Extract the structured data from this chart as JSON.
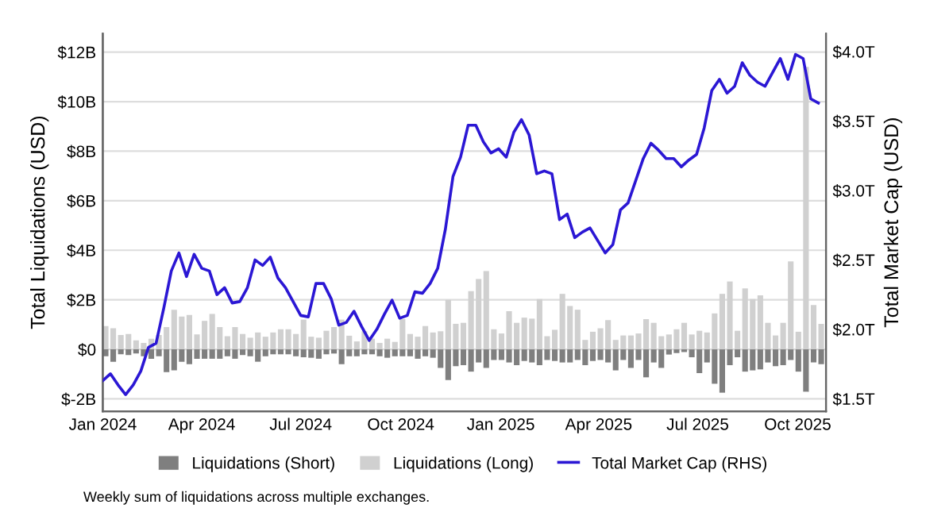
{
  "chart_data": {
    "type": "bar",
    "stacked": true,
    "ylabel": "Total Liquidations (USD)",
    "y2label": "Total Market Cap (USD)",
    "annotations": [
      "Weekly sum of liquidations across multiple exchanges."
    ],
    "x": [
      "2024-01-01",
      "2024-01-08",
      "2024-01-15",
      "2024-01-22",
      "2024-01-29",
      "2024-02-05",
      "2024-02-12",
      "2024-02-19",
      "2024-02-26",
      "2024-03-04",
      "2024-03-11",
      "2024-03-18",
      "2024-03-25",
      "2024-04-01",
      "2024-04-08",
      "2024-04-15",
      "2024-04-22",
      "2024-04-29",
      "2024-05-06",
      "2024-05-13",
      "2024-05-20",
      "2024-05-27",
      "2024-06-03",
      "2024-06-10",
      "2024-06-17",
      "2024-06-24",
      "2024-07-01",
      "2024-07-08",
      "2024-07-15",
      "2024-07-22",
      "2024-07-29",
      "2024-08-05",
      "2024-08-12",
      "2024-08-19",
      "2024-08-26",
      "2024-09-02",
      "2024-09-09",
      "2024-09-16",
      "2024-09-23",
      "2024-09-30",
      "2024-10-07",
      "2024-10-14",
      "2024-10-21",
      "2024-10-28",
      "2024-11-04",
      "2024-11-11",
      "2024-11-18",
      "2024-11-25",
      "2024-12-02",
      "2024-12-09",
      "2024-12-16",
      "2024-12-23",
      "2024-12-30",
      "2025-01-06",
      "2025-01-13",
      "2025-01-20",
      "2025-01-27",
      "2025-02-03",
      "2025-02-10",
      "2025-02-17",
      "2025-02-24",
      "2025-03-03",
      "2025-03-10",
      "2025-03-17",
      "2025-03-24",
      "2025-03-31",
      "2025-04-07",
      "2025-04-14",
      "2025-04-21",
      "2025-04-28",
      "2025-05-05",
      "2025-05-12",
      "2025-05-19",
      "2025-05-26",
      "2025-06-02",
      "2025-06-09",
      "2025-06-16",
      "2025-06-23",
      "2025-06-30",
      "2025-07-07",
      "2025-07-14",
      "2025-07-21",
      "2025-07-28",
      "2025-08-04",
      "2025-08-11",
      "2025-08-18",
      "2025-08-25",
      "2025-09-01",
      "2025-09-08",
      "2025-09-15",
      "2025-09-22",
      "2025-09-29",
      "2025-10-06",
      "2025-10-13",
      "2025-10-20"
    ],
    "series": [
      {
        "name": "Liquidations (Short)",
        "color": "#7f7f7f",
        "values": [
          -0.28,
          -0.5,
          -0.2,
          -0.23,
          -0.17,
          -0.28,
          -0.38,
          -0.28,
          -0.92,
          -0.85,
          -0.5,
          -0.6,
          -0.38,
          -0.38,
          -0.38,
          -0.38,
          -0.28,
          -0.38,
          -0.23,
          -0.28,
          -0.5,
          -0.28,
          -0.2,
          -0.2,
          -0.2,
          -0.28,
          -0.32,
          -0.34,
          -0.38,
          -0.2,
          -0.17,
          -0.6,
          -0.28,
          -0.28,
          -0.2,
          -0.2,
          -0.28,
          -0.34,
          -0.28,
          -0.28,
          -0.28,
          -0.38,
          -0.28,
          -0.34,
          -0.75,
          -1.24,
          -0.68,
          -0.64,
          -0.9,
          -0.53,
          -0.75,
          -0.43,
          -0.43,
          -0.53,
          -0.64,
          -0.47,
          -0.53,
          -0.64,
          -0.43,
          -0.47,
          -0.53,
          -0.53,
          -0.43,
          -0.64,
          -0.47,
          -0.43,
          -0.53,
          -0.85,
          -0.43,
          -0.75,
          -0.43,
          -1.13,
          -0.53,
          -0.75,
          -0.21,
          -0.15,
          -0.11,
          -0.32,
          -0.96,
          -0.53,
          -1.39,
          -1.75,
          -0.64,
          -0.32,
          -0.9,
          -0.85,
          -0.81,
          -0.53,
          -0.68,
          -0.64,
          -0.43,
          -0.9,
          -1.71,
          -0.53,
          -0.6
        ]
      },
      {
        "name": "Liquidations (Long)",
        "color": "#d0d0d0",
        "values": [
          0.94,
          0.85,
          0.58,
          0.62,
          0.36,
          0.26,
          0.43,
          0.58,
          0.9,
          1.6,
          1.32,
          1.39,
          0.6,
          1.15,
          1.43,
          0.9,
          0.53,
          0.9,
          0.62,
          0.47,
          0.68,
          0.51,
          0.68,
          0.81,
          0.81,
          0.62,
          1.2,
          0.51,
          0.47,
          0.75,
          0.9,
          1.2,
          0.55,
          0.32,
          0.73,
          0.43,
          0.26,
          0.43,
          0.3,
          1.22,
          0.62,
          0.51,
          0.94,
          0.68,
          0.73,
          2.0,
          1.03,
          1.07,
          2.35,
          2.84,
          3.16,
          0.81,
          0.64,
          1.54,
          1.07,
          1.28,
          1.24,
          2.03,
          0.53,
          0.79,
          2.24,
          1.75,
          1.6,
          0.38,
          0.71,
          0.85,
          1.18,
          0.38,
          0.56,
          0.56,
          0.64,
          1.22,
          1.07,
          0.53,
          0.6,
          0.81,
          1.07,
          0.6,
          0.75,
          0.68,
          1.45,
          2.24,
          2.74,
          0.75,
          2.46,
          2.03,
          2.18,
          1.07,
          0.56,
          1.07,
          3.55,
          0.71,
          11.4,
          1.79,
          1.03
        ]
      },
      {
        "name": "Total Market Cap (RHS)",
        "type": "line",
        "axis": "y2",
        "color": "#2b17d4",
        "values": [
          1.63,
          1.68,
          1.6,
          1.53,
          1.6,
          1.7,
          1.87,
          1.9,
          2.15,
          2.42,
          2.55,
          2.38,
          2.54,
          2.44,
          2.42,
          2.25,
          2.3,
          2.19,
          2.2,
          2.3,
          2.5,
          2.46,
          2.52,
          2.37,
          2.3,
          2.2,
          2.1,
          2.09,
          2.33,
          2.33,
          2.22,
          2.03,
          2.05,
          2.13,
          2.02,
          1.92,
          2.0,
          2.11,
          2.21,
          2.08,
          2.1,
          2.27,
          2.26,
          2.33,
          2.44,
          2.72,
          3.1,
          3.24,
          3.47,
          3.47,
          3.35,
          3.27,
          3.3,
          3.24,
          3.42,
          3.51,
          3.4,
          3.12,
          3.14,
          3.12,
          2.79,
          2.83,
          2.66,
          2.7,
          2.73,
          2.64,
          2.55,
          2.61,
          2.86,
          2.91,
          3.07,
          3.23,
          3.34,
          3.29,
          3.23,
          3.23,
          3.17,
          3.22,
          3.26,
          3.45,
          3.72,
          3.8,
          3.7,
          3.75,
          3.92,
          3.83,
          3.78,
          3.75,
          3.85,
          3.95,
          3.8,
          3.98,
          3.95,
          3.66,
          3.63
        ]
      }
    ],
    "xlim": [
      "2024-01-01",
      "2025-10-27"
    ],
    "xticks": [
      {
        "value": "2024-01-01",
        "label": "Jan 2024"
      },
      {
        "value": "2024-04-01",
        "label": "Apr 2024"
      },
      {
        "value": "2024-07-01",
        "label": "Jul 2024"
      },
      {
        "value": "2024-10-01",
        "label": "Oct 2024"
      },
      {
        "value": "2025-01-01",
        "label": "Jan 2025"
      },
      {
        "value": "2025-04-01",
        "label": "Apr 2025"
      },
      {
        "value": "2025-07-01",
        "label": "Jul 2025"
      },
      {
        "value": "2025-10-01",
        "label": "Oct 2025"
      }
    ],
    "ylim": [
      -2.5,
      12.75
    ],
    "yticks": [
      {
        "value": -2,
        "label": "$-2B"
      },
      {
        "value": 0,
        "label": "$0"
      },
      {
        "value": 2,
        "label": "$2B"
      },
      {
        "value": 4,
        "label": "$4B"
      },
      {
        "value": 6,
        "label": "$6B"
      },
      {
        "value": 8,
        "label": "$8B"
      },
      {
        "value": 10,
        "label": "$10B"
      },
      {
        "value": 12,
        "label": "$12B"
      }
    ],
    "y2lim": [
      1.41,
      4.13
    ],
    "y2ticks": [
      {
        "value": 1.5,
        "label": "$1.5T"
      },
      {
        "value": 2.0,
        "label": "$2.0T"
      },
      {
        "value": 2.5,
        "label": "$2.5T"
      },
      {
        "value": 3.0,
        "label": "$3.0T"
      },
      {
        "value": 3.5,
        "label": "$3.5T"
      },
      {
        "value": 4.0,
        "label": "$4.0T"
      }
    ],
    "grid": "y",
    "legend": "bottom",
    "marker": "none",
    "line_style": "solid"
  }
}
